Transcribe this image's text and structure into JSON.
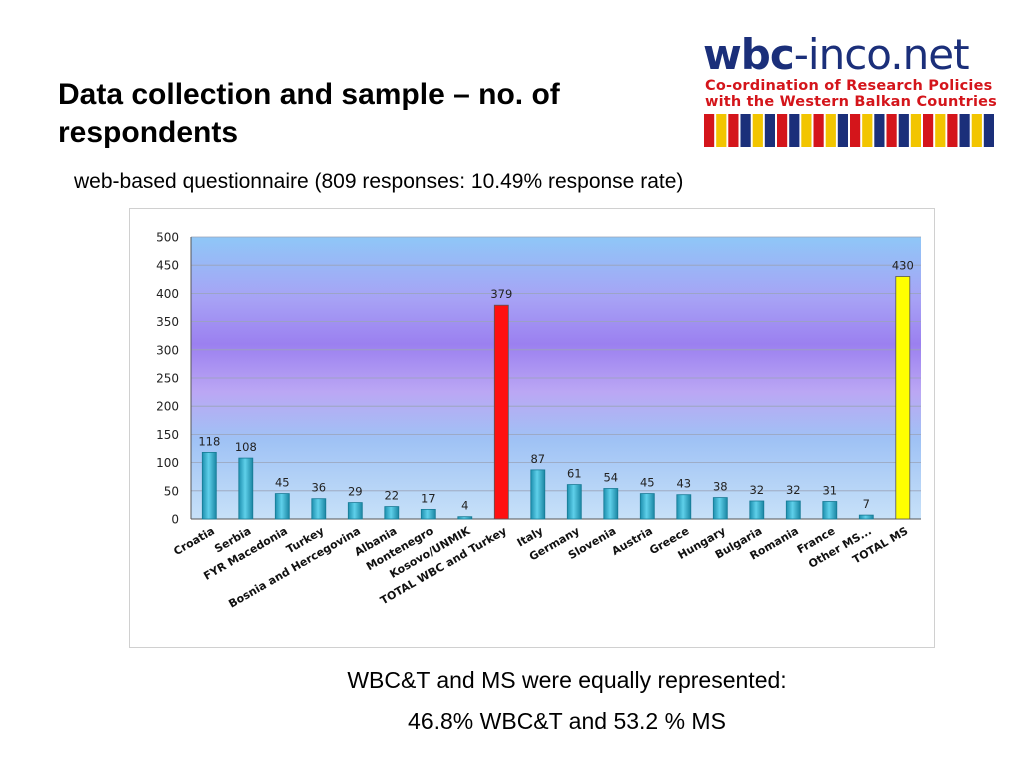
{
  "slide": {
    "title": "Data collection and sample – no. of respondents",
    "subtitle": "web-based questionnaire (809 responses: 10.49% response rate)",
    "conclusion_line1": "WBC&T and MS were equally represented:",
    "conclusion_line2": "46.8% WBC&T and 53.2 % MS"
  },
  "logo": {
    "brand_bold": "wbc",
    "brand_rest": "-inco.net",
    "tagline1": "Co-ordination of Research Policies",
    "tagline2": "with the Western Balkan Countries",
    "colors": {
      "navy": "#1b2f7a",
      "red": "#d4151b",
      "yellow": "#f2c500"
    }
  },
  "chart_data": {
    "type": "bar",
    "categories": [
      "Croatia",
      "Serbia",
      "FYR Macedonia",
      "Turkey",
      "Bosnia and Hercegovina",
      "Albania",
      "Montenegro",
      "Kosovo/UNMIK",
      "TOTAL WBC and Turkey",
      "Italy",
      "Germany",
      "Slovenia",
      "Austria",
      "Greece",
      "Hungary",
      "Bulgaria",
      "Romania",
      "France",
      "Other MS...",
      "TOTAL MS"
    ],
    "values": [
      118,
      108,
      45,
      36,
      29,
      22,
      17,
      4,
      379,
      87,
      61,
      54,
      45,
      43,
      38,
      32,
      32,
      31,
      7,
      430
    ],
    "value_labels": [
      "118",
      "108",
      "45",
      "36",
      "29",
      "22",
      "17",
      "4",
      "379",
      "87",
      "61",
      "54",
      "45",
      "43",
      "38",
      "32",
      "32",
      "31",
      "7",
      "430"
    ],
    "bar_colors": [
      "#3fb4d0",
      "#3fb4d0",
      "#3fb4d0",
      "#3fb4d0",
      "#3fb4d0",
      "#3fb4d0",
      "#3fb4d0",
      "#3fb4d0",
      "#ff1010",
      "#3fb4d0",
      "#3fb4d0",
      "#3fb4d0",
      "#3fb4d0",
      "#3fb4d0",
      "#3fb4d0",
      "#3fb4d0",
      "#3fb4d0",
      "#3fb4d0",
      "#3fb4d0",
      "#ffff00"
    ],
    "ylim": [
      0,
      500
    ],
    "yticks": [
      "0",
      "50",
      "100",
      "150",
      "200",
      "250",
      "300",
      "350",
      "400",
      "450",
      "500"
    ],
    "grid": true,
    "legend": "none",
    "title": "",
    "xlabel": "",
    "ylabel": ""
  }
}
